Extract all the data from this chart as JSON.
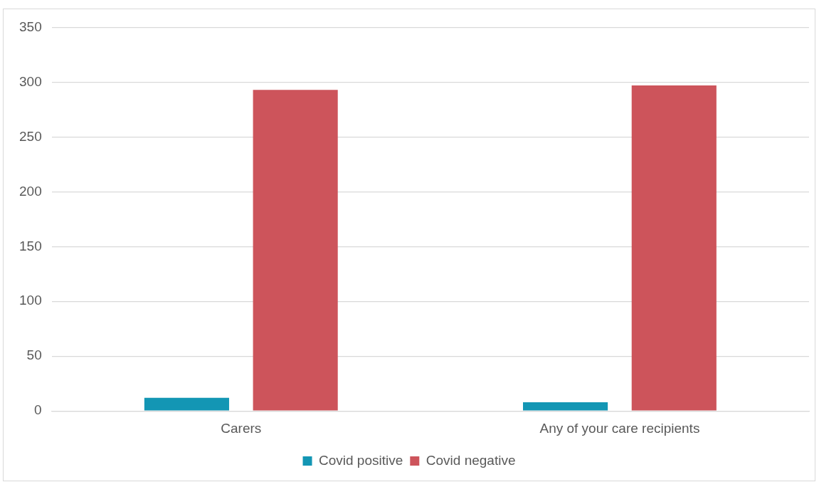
{
  "chart_data": {
    "type": "bar",
    "categories": [
      "Carers",
      "Any of your care recipients"
    ],
    "series": [
      {
        "name": "Covid positive",
        "color": "#1396b4",
        "values": [
          12,
          8
        ]
      },
      {
        "name": "Covid negative",
        "color": "#cd545b",
        "values": [
          293,
          297
        ]
      }
    ],
    "ylim": [
      0,
      350
    ],
    "yticks": [
      0,
      50,
      100,
      150,
      200,
      250,
      300,
      350
    ],
    "grid": "y",
    "legend": "bottom"
  }
}
